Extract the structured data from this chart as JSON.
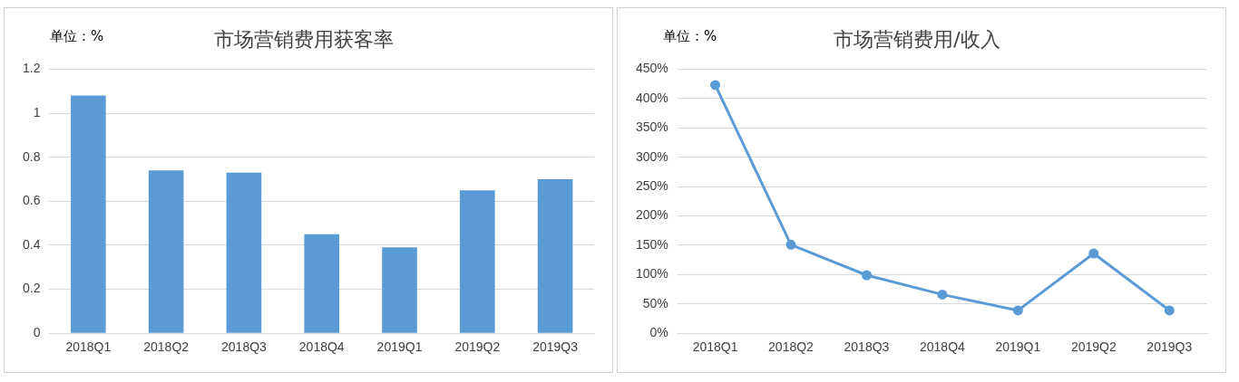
{
  "chart_data": [
    {
      "type": "bar",
      "title": "市场营销费用获客率",
      "annotations": [
        "单位：%"
      ],
      "categories": [
        "2018Q1",
        "2018Q2",
        "2018Q3",
        "2018Q4",
        "2019Q1",
        "2019Q2",
        "2019Q3"
      ],
      "values": [
        1.08,
        0.74,
        0.73,
        0.45,
        0.39,
        0.65,
        0.7
      ],
      "color": "#5b9bd5",
      "ylim": [
        0,
        1.2
      ],
      "yticks": [
        0,
        {
          "value": 0.2,
          "label": "0.2"
        },
        {
          "value": 0.4,
          "label": "0.4"
        },
        {
          "value": 0.6,
          "label": "0.6"
        },
        {
          "value": 0.8,
          "label": "0.8"
        },
        1,
        {
          "value": 1.2,
          "label": "1.2"
        }
      ],
      "grid": "y",
      "legend": false
    },
    {
      "type": "line",
      "title": "市场营销费用/收入",
      "annotations": [
        "单位：%"
      ],
      "categories": [
        "2018Q1",
        "2018Q2",
        "2018Q3",
        "2018Q4",
        "2019Q1",
        "2019Q2",
        "2019Q3"
      ],
      "values": [
        423,
        151,
        99,
        66,
        39,
        136,
        39
      ],
      "color": "#5b9bd5",
      "marker": "circle",
      "ylim": [
        0,
        450
      ],
      "yticks": [
        {
          "value": 0,
          "label": "0%"
        },
        {
          "value": 50,
          "label": "50%"
        },
        {
          "value": 100,
          "label": "100%"
        },
        {
          "value": 150,
          "label": "150%"
        },
        {
          "value": 200,
          "label": "200%"
        },
        {
          "value": 250,
          "label": "250%"
        },
        {
          "value": 300,
          "label": "300%"
        },
        {
          "value": 350,
          "label": "350%"
        },
        {
          "value": 400,
          "label": "400%"
        },
        {
          "value": 450,
          "label": "450%"
        }
      ],
      "grid": "y",
      "legend": false
    }
  ]
}
